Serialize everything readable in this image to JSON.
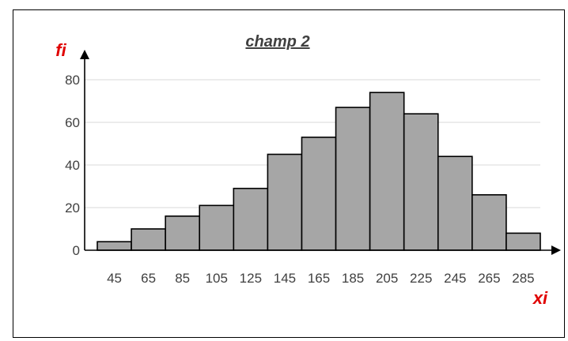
{
  "chart_data": {
    "type": "bar",
    "title": "champ 2",
    "xlabel": "xi",
    "ylabel": "fi",
    "categories": [
      "45",
      "65",
      "85",
      "105",
      "125",
      "145",
      "165",
      "185",
      "205",
      "225",
      "245",
      "265",
      "285"
    ],
    "values": [
      4,
      10,
      16,
      21,
      29,
      45,
      53,
      67,
      74,
      64,
      44,
      26,
      8
    ],
    "ylim": [
      0,
      80
    ],
    "yticks": [
      "0",
      "20",
      "40",
      "60",
      "80"
    ],
    "grid": true,
    "legend": "none",
    "colors": {
      "bar": "#a6a6a6",
      "bar_edge": "#000000",
      "axis_label": "#e00000",
      "grid": "#d9d9d9"
    }
  }
}
